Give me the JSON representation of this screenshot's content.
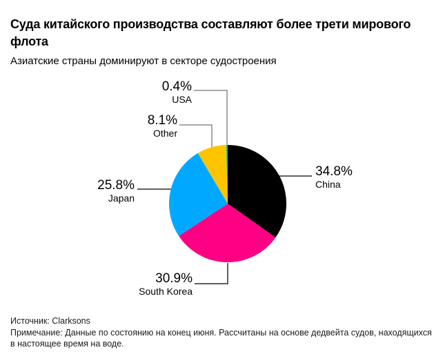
{
  "header": {
    "title": "Суда китайского производства составляют более трети мирового флота",
    "subtitle": "Азиатские страны доминируют в секторе судостроения"
  },
  "chart_data": {
    "type": "pie",
    "title": "Суда китайского производства составляют более трети мирового флота",
    "subtitle": "Азиатские страны доминируют в секторе судостроения",
    "unit": "%",
    "start_angle_deg": -90,
    "direction": "clockwise",
    "legend_position": "callout-labels",
    "slices": [
      {
        "label": "China",
        "value": 34.8,
        "display": "34.8%",
        "color": "#000000"
      },
      {
        "label": "South Korea",
        "value": 30.9,
        "display": "30.9%",
        "color": "#ff0084"
      },
      {
        "label": "Japan",
        "value": 25.8,
        "display": "25.8%",
        "color": "#00a9ff"
      },
      {
        "label": "Other",
        "value": 8.1,
        "display": "8.1%",
        "color": "#ffc400"
      },
      {
        "label": "USA",
        "value": 0.4,
        "display": "0.4%",
        "color": "#16c35a"
      }
    ]
  },
  "colors": {
    "background": "#ffffff",
    "text": "#000000",
    "leader_line_gray": "#8c8c8c",
    "leader_line_dark": "#2b2b2b"
  },
  "footer": {
    "source": "Источник: Clarksons",
    "note": "Примечание: Данные по состоянию на конец июня. Рассчитаны на основе дедвейта судов, находящихся в настоящее время на воде."
  }
}
